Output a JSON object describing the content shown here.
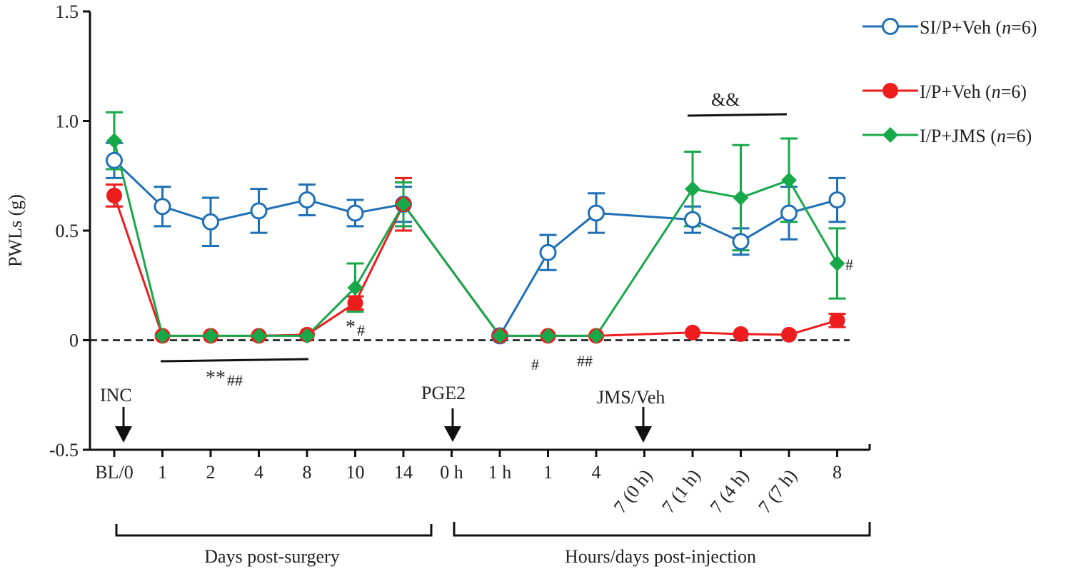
{
  "chart_data": {
    "type": "line",
    "title": "",
    "ylabel": "PWLs (g)",
    "xlabel": "",
    "ylim": [
      -0.5,
      1.5
    ],
    "yticks": [
      -0.5,
      0,
      0.5,
      1.0,
      1.5
    ],
    "ytick_labels": [
      "-0.5",
      "0",
      "0.5",
      "1.0",
      "1.5"
    ],
    "baseline": 0,
    "grid": false,
    "legend_position": "top-right",
    "categories": [
      "BL/0",
      "1",
      "2",
      "4",
      "8",
      "10",
      "14",
      "0 h",
      "1 h",
      "1",
      "4",
      "7 (0 h)",
      "7 (1 h)",
      "7 (4 h)",
      "7 (7 h)",
      "8"
    ],
    "rotated_categories": [
      "7 (0 h)",
      "7 (1 h)",
      "7 (4 h)",
      "7 (7 h)"
    ],
    "series": [
      {
        "name": "SI/P+Veh",
        "n_label": "n",
        "n_value": "=6)",
        "color": "#1f6fb5",
        "marker": "open-circle",
        "values": [
          0.82,
          0.61,
          0.54,
          0.59,
          0.64,
          0.58,
          0.62,
          null,
          0.02,
          0.4,
          0.58,
          null,
          0.55,
          0.45,
          0.58,
          0.64
        ],
        "errors": [
          0.08,
          0.09,
          0.11,
          0.1,
          0.07,
          0.06,
          0.08,
          null,
          0.0,
          0.08,
          0.09,
          null,
          0.06,
          0.06,
          0.12,
          0.1
        ]
      },
      {
        "name": "I/P+Veh",
        "n_label": "n",
        "n_value": "=6)",
        "color": "#ee1c1c",
        "marker": "filled-circle",
        "values": [
          0.66,
          0.02,
          0.02,
          0.02,
          0.025,
          0.17,
          0.62,
          null,
          0.02,
          0.02,
          0.02,
          null,
          0.035,
          0.028,
          0.025,
          0.09
        ],
        "errors": [
          0.05,
          0.0,
          0.0,
          0.0,
          0.0,
          0.03,
          0.12,
          null,
          0.0,
          0.0,
          0.0,
          null,
          0.0,
          0.0,
          0.0,
          0.03
        ]
      },
      {
        "name": "I/P+JMS",
        "n_label": "n",
        "n_value": "=6)",
        "color": "#17a84a",
        "marker": "filled-diamond",
        "values": [
          0.91,
          0.02,
          0.02,
          0.02,
          0.02,
          0.24,
          0.62,
          null,
          0.02,
          0.02,
          0.02,
          null,
          0.69,
          0.65,
          0.73,
          0.35
        ],
        "errors": [
          0.13,
          0.0,
          0.0,
          0.0,
          0.0,
          0.11,
          0.1,
          null,
          0.0,
          0.0,
          0.0,
          null,
          0.17,
          0.24,
          0.19,
          0.16
        ]
      }
    ],
    "annotations": [
      {
        "text_main": "**",
        "text_sub": "##",
        "label": "significance bar days 1–8"
      },
      {
        "text_main": "*",
        "text_sub": "#",
        "label": "day 10"
      },
      {
        "text_main": "",
        "text_sub": "#",
        "label": "post-injection day 1"
      },
      {
        "text_main": "",
        "text_sub": "##",
        "label": "post-injection day 4"
      },
      {
        "text_main": "&&",
        "text_sub": "",
        "label": "significance bar 7 (1 h) – 7 (7 h)"
      },
      {
        "text_main": "",
        "text_sub": "#",
        "label": "post-injection day 8"
      }
    ],
    "event_arrows": [
      {
        "label": "INC",
        "at": "BL/0"
      },
      {
        "label": "PGE2",
        "at": "0 h"
      },
      {
        "label": "JMS/Veh",
        "at": "7 (0 h)"
      }
    ],
    "period_brackets": [
      {
        "label": "Days post-surgery"
      },
      {
        "label": "Hours/days post-injection"
      }
    ]
  }
}
